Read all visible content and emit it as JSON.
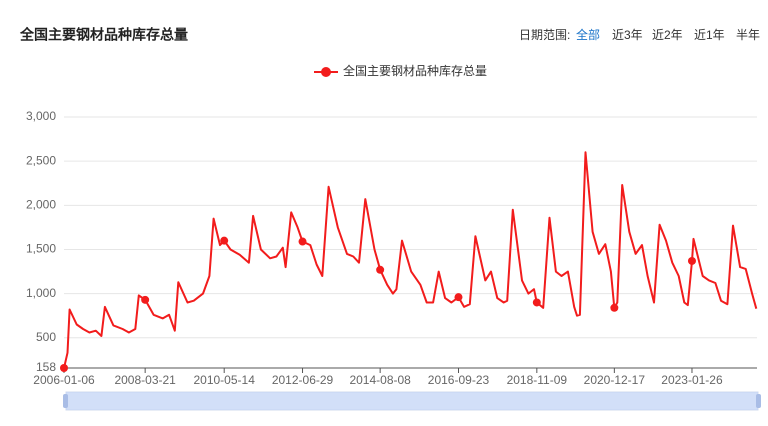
{
  "chart_data": {
    "type": "line",
    "title": "全国主要钢材品种库存总量",
    "date_range": {
      "label": "日期范围:",
      "options": [
        "全部",
        "近3年",
        "近2年",
        "近1年",
        "半年"
      ],
      "active": 0
    },
    "x": [
      "2006-01-06",
      "2006-02-10",
      "2006-03-03",
      "2006-05-12",
      "2006-07-14",
      "2006-09-15",
      "2006-11-17",
      "2007-01-12",
      "2007-02-16",
      "2007-05-11",
      "2007-08-10",
      "2007-10-12",
      "2007-12-14",
      "2008-01-18",
      "2008-03-21",
      "2008-06-13",
      "2008-09-12",
      "2008-11-14",
      "2009-01-09",
      "2009-02-13",
      "2009-05-15",
      "2009-07-17",
      "2009-10-16",
      "2009-12-18",
      "2010-01-29",
      "2010-04-02",
      "2010-05-14",
      "2010-07-16",
      "2010-10-15",
      "2011-01-14",
      "2011-02-25",
      "2011-05-13",
      "2011-08-12",
      "2011-10-14",
      "2011-12-16",
      "2012-01-13",
      "2012-03-09",
      "2012-05-11",
      "2012-06-29",
      "2012-09-14",
      "2012-11-16",
      "2013-01-11",
      "2013-03-15",
      "2013-06-14",
      "2013-09-13",
      "2013-11-15",
      "2014-01-10",
      "2014-03-14",
      "2014-06-13",
      "2014-08-08",
      "2014-10-17",
      "2014-12-12",
      "2015-01-16",
      "2015-03-13",
      "2015-06-12",
      "2015-09-11",
      "2015-11-13",
      "2016-01-15",
      "2016-03-11",
      "2016-05-13",
      "2016-07-15",
      "2016-09-23",
      "2016-11-18",
      "2017-01-13",
      "2017-03-10",
      "2017-06-16",
      "2017-08-11",
      "2017-10-13",
      "2017-12-15",
      "2018-01-19",
      "2018-03-16",
      "2018-06-15",
      "2018-08-17",
      "2018-10-12",
      "2018-11-09",
      "2019-01-11",
      "2019-03-15",
      "2019-05-17",
      "2019-07-12",
      "2019-09-13",
      "2019-11-15",
      "2019-12-13",
      "2020-01-10",
      "2020-03-06",
      "2020-05-15",
      "2020-07-17",
      "2020-09-18",
      "2020-11-13",
      "2020-12-17",
      "2021-01-15",
      "2021-03-05",
      "2021-05-14",
      "2021-07-16",
      "2021-09-17",
      "2021-11-12",
      "2022-01-14",
      "2022-03-11",
      "2022-05-13",
      "2022-07-15",
      "2022-09-16",
      "2022-11-11",
      "2022-12-16",
      "2023-01-26",
      "2023-02-10",
      "2023-05-12",
      "2023-07-14",
      "2023-09-15",
      "2023-11-10",
      "2024-01-12",
      "2024-03-08",
      "2024-05-17",
      "2024-07-12",
      "2024-09-13",
      "2024-10-25"
    ],
    "series": [
      {
        "name": "全国主要钢材品种库存总量",
        "color": "#f21c1c",
        "values": [
          158,
          330,
          820,
          650,
          600,
          560,
          580,
          520,
          850,
          640,
          600,
          560,
          600,
          980,
          930,
          760,
          720,
          760,
          580,
          1130,
          900,
          920,
          1000,
          1200,
          1850,
          1550,
          1600,
          1500,
          1440,
          1350,
          1880,
          1500,
          1400,
          1420,
          1520,
          1300,
          1920,
          1750,
          1590,
          1550,
          1330,
          1200,
          2210,
          1750,
          1450,
          1420,
          1350,
          2070,
          1500,
          1270,
          1100,
          1000,
          1050,
          1600,
          1250,
          1100,
          900,
          900,
          1250,
          950,
          900,
          960,
          850,
          880,
          1650,
          1150,
          1250,
          950,
          900,
          920,
          1950,
          1150,
          1000,
          1050,
          900,
          840,
          1860,
          1250,
          1200,
          1250,
          850,
          750,
          760,
          2600,
          1700,
          1450,
          1560,
          1250,
          840,
          900,
          2230,
          1700,
          1450,
          1550,
          1200,
          900,
          1780,
          1600,
          1350,
          1200,
          900,
          870,
          1370,
          1620,
          1200,
          1150,
          1120,
          920,
          880,
          1770,
          1300,
          1280,
          1000,
          830
        ]
      }
    ],
    "xlim": [
      "2006-01-06",
      "2024-11-01"
    ],
    "xticks": [
      "2006-01-06",
      "2008-03-21",
      "2010-05-14",
      "2012-06-29",
      "2014-08-08",
      "2016-09-23",
      "2018-11-09",
      "2020-12-17",
      "2023-01-26"
    ],
    "ylim": [
      158,
      3000
    ],
    "yticks": [
      158,
      {
        "value": 500,
        "label": "500"
      },
      {
        "value": 1000,
        "label": "1,000"
      },
      {
        "value": 1500,
        "label": "1,500"
      },
      {
        "value": 2000,
        "label": "2,000"
      },
      {
        "value": 2500,
        "label": "2,500"
      },
      {
        "value": 3000,
        "label": "3,000"
      }
    ],
    "grid": true
  }
}
